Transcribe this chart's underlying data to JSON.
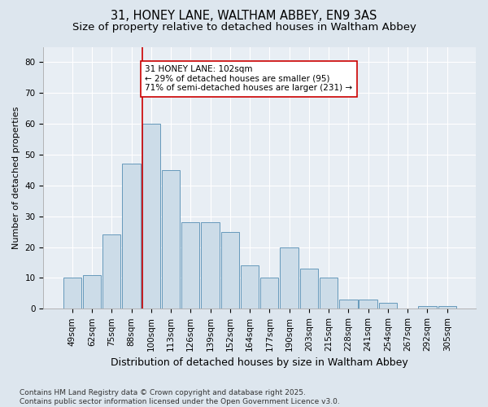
{
  "title1": "31, HONEY LANE, WALTHAM ABBEY, EN9 3AS",
  "title2": "Size of property relative to detached houses in Waltham Abbey",
  "xlabel": "Distribution of detached houses by size in Waltham Abbey",
  "ylabel": "Number of detached properties",
  "categories": [
    "49sqm",
    "62sqm",
    "75sqm",
    "88sqm",
    "100sqm",
    "113sqm",
    "126sqm",
    "139sqm",
    "152sqm",
    "164sqm",
    "177sqm",
    "190sqm",
    "203sqm",
    "215sqm",
    "228sqm",
    "241sqm",
    "254sqm",
    "267sqm",
    "292sqm",
    "305sqm"
  ],
  "values": [
    10,
    11,
    24,
    47,
    60,
    45,
    28,
    28,
    25,
    14,
    10,
    20,
    13,
    10,
    3,
    3,
    2,
    0,
    1,
    1
  ],
  "bar_color": "#ccdce8",
  "bar_edge_color": "#6699bb",
  "vline_color": "#cc0000",
  "vline_x_index": 4,
  "annotation_text": "31 HONEY LANE: 102sqm\n← 29% of detached houses are smaller (95)\n71% of semi-detached houses are larger (231) →",
  "annotation_box_facecolor": "#ffffff",
  "annotation_box_edgecolor": "#cc0000",
  "ylim": [
    0,
    85
  ],
  "yticks": [
    0,
    10,
    20,
    30,
    40,
    50,
    60,
    70,
    80
  ],
  "bg_color": "#dde6ee",
  "plot_bg_color": "#e8eef4",
  "grid_color": "#ffffff",
  "footer": "Contains HM Land Registry data © Crown copyright and database right 2025.\nContains public sector information licensed under the Open Government Licence v3.0.",
  "title1_fontsize": 10.5,
  "title2_fontsize": 9.5,
  "xlabel_fontsize": 9,
  "ylabel_fontsize": 8,
  "annotation_fontsize": 7.5,
  "footer_fontsize": 6.5,
  "tick_fontsize": 7.5
}
